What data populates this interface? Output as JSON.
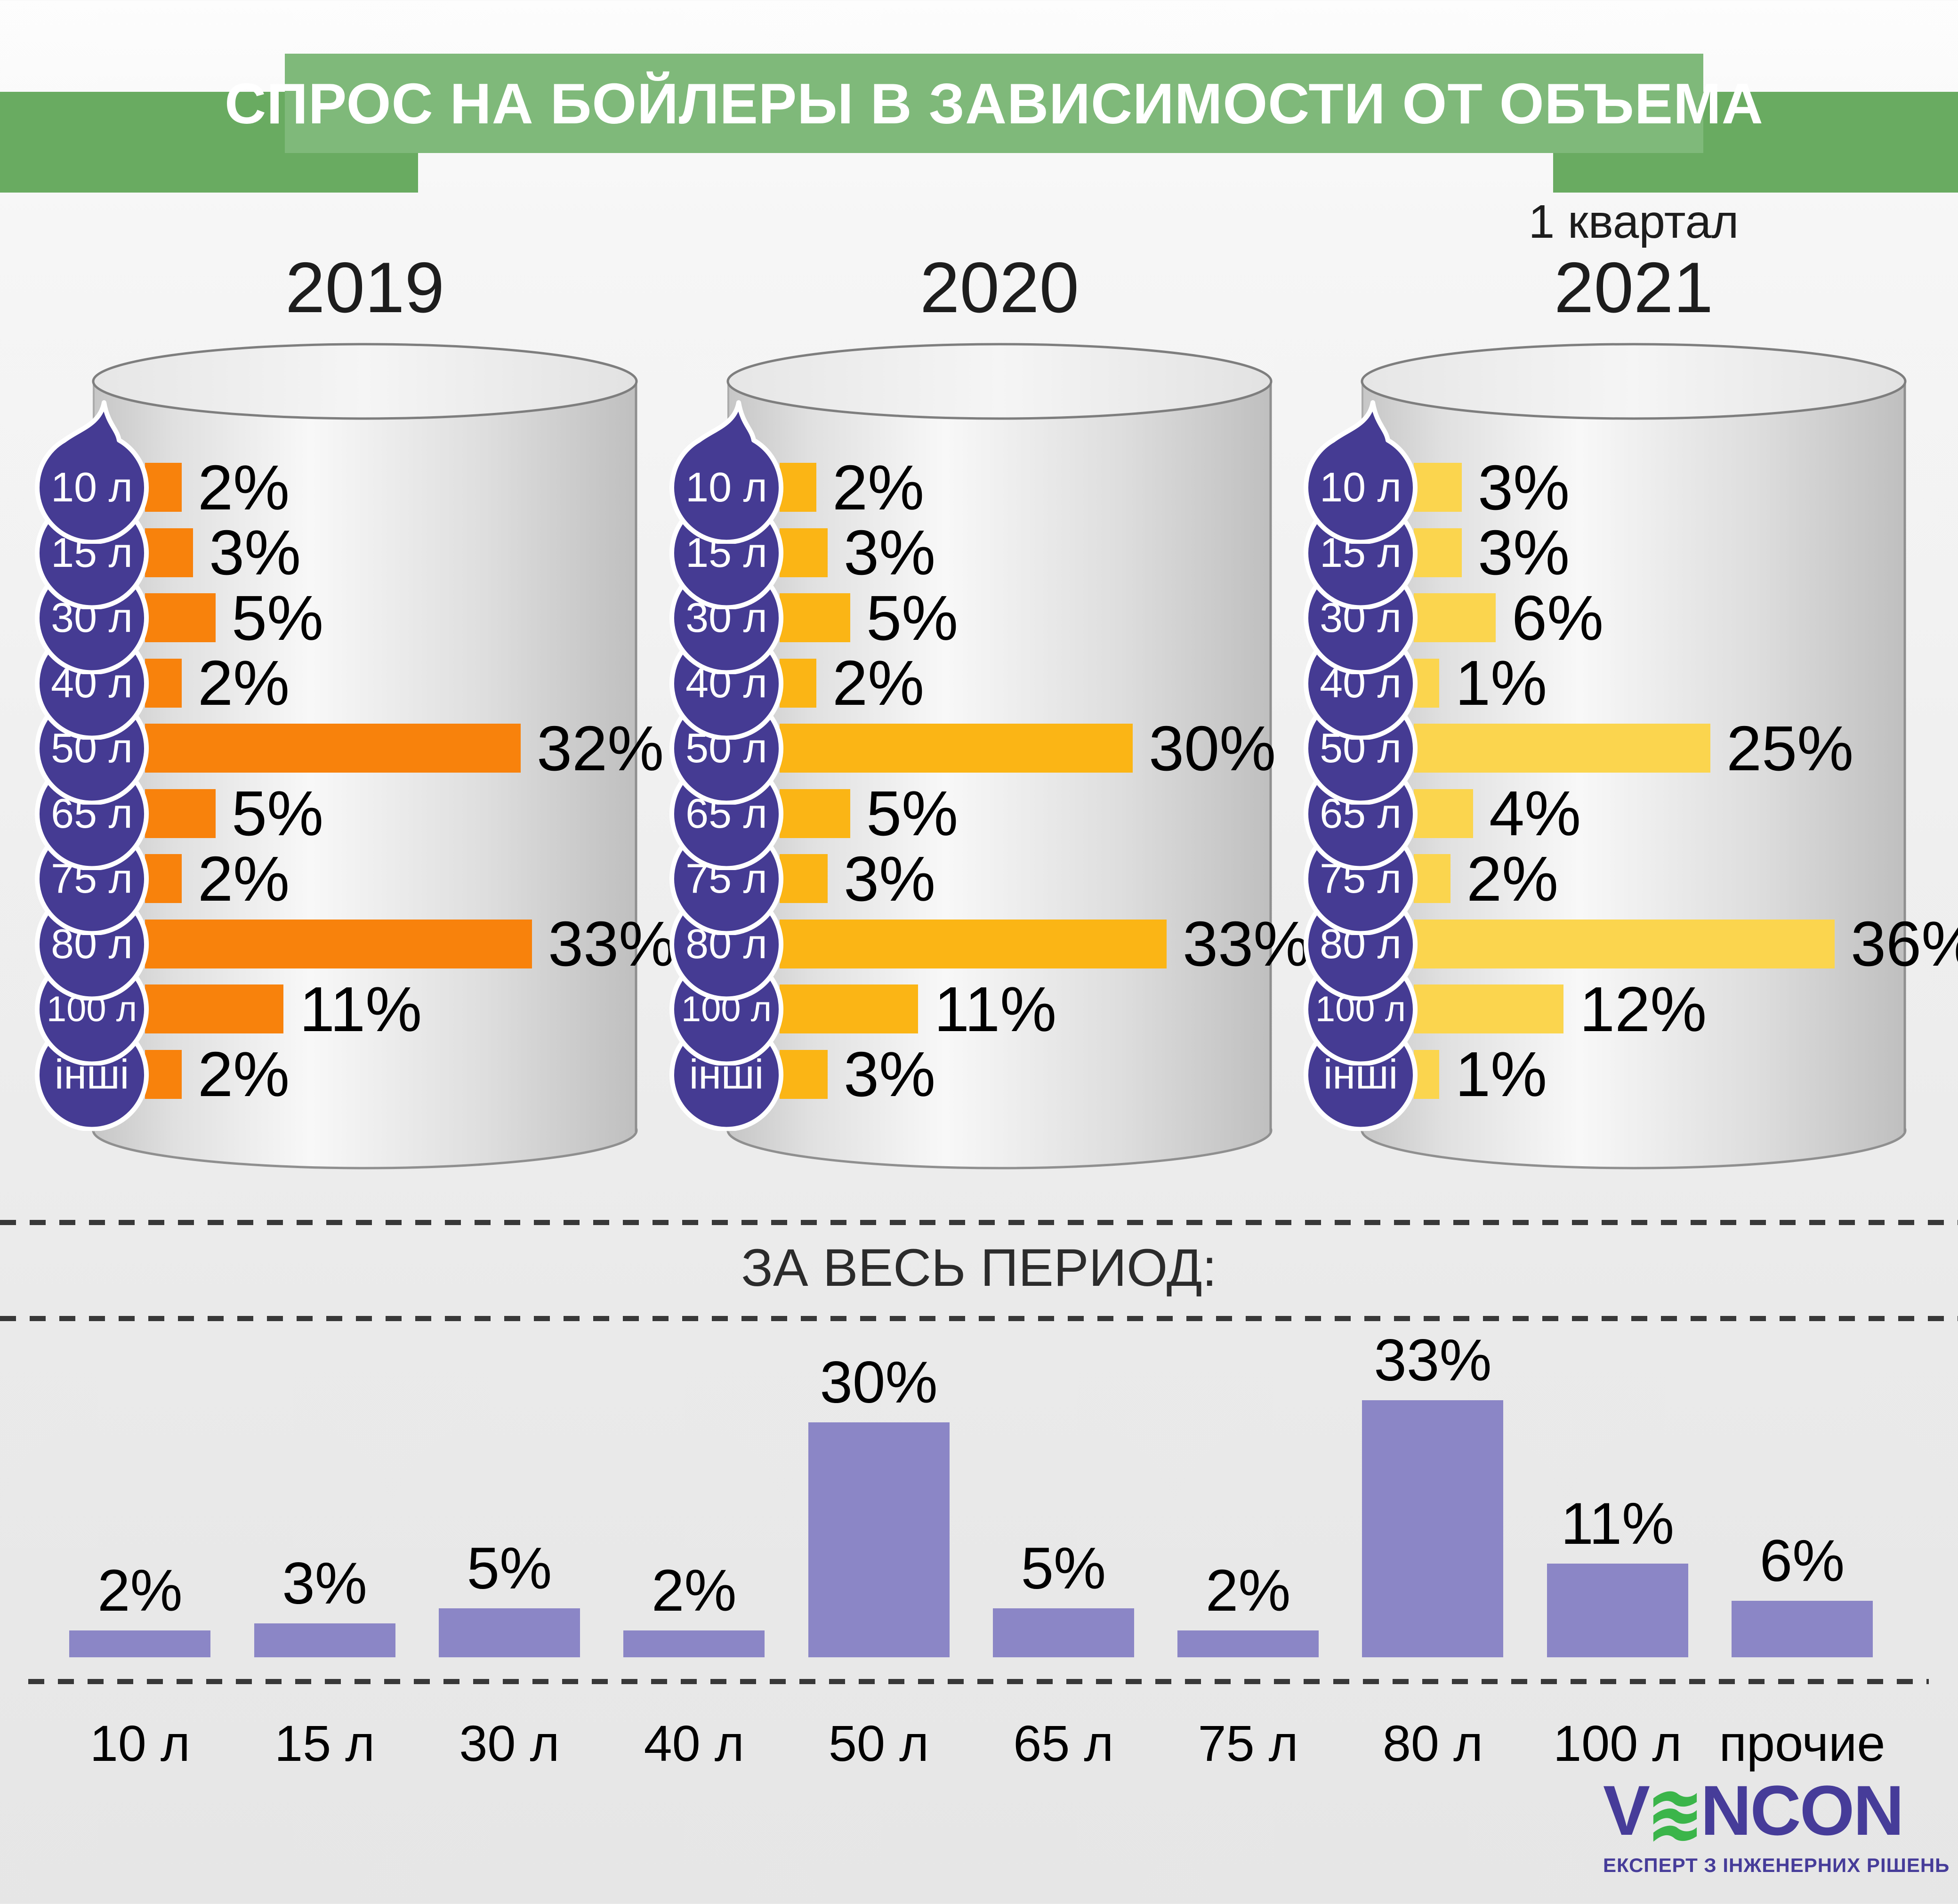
{
  "header": {
    "title": "СПРОС НА БОЙЛЕРЫ В ЗАВИСИМОСТИ ОТ ОБЪЕМА"
  },
  "chart_data": [
    {
      "type": "bar",
      "orientation": "horizontal",
      "title": "2019",
      "subtitle": "",
      "unit": "%",
      "bar_color": "#F8820C",
      "categories": [
        "10 л",
        "15 л",
        "30 л",
        "40 л",
        "50 л",
        "65 л",
        "75 л",
        "80 л",
        "100 л",
        "інші"
      ],
      "values": [
        2,
        3,
        5,
        2,
        32,
        5,
        2,
        33,
        11,
        2
      ]
    },
    {
      "type": "bar",
      "orientation": "horizontal",
      "title": "2020",
      "subtitle": "",
      "unit": "%",
      "bar_color": "#FBB515",
      "categories": [
        "10 л",
        "15 л",
        "30 л",
        "40 л",
        "50 л",
        "65 л",
        "75 л",
        "80 л",
        "100 л",
        "інші"
      ],
      "values": [
        2,
        3,
        5,
        2,
        30,
        5,
        3,
        33,
        11,
        3
      ]
    },
    {
      "type": "bar",
      "orientation": "horizontal",
      "title": "2021",
      "subtitle": "1 квартал",
      "unit": "%",
      "bar_color": "#FBD54E",
      "categories": [
        "10 л",
        "15 л",
        "30 л",
        "40 л",
        "50 л",
        "65 л",
        "75 л",
        "80 л",
        "100 л",
        "інші"
      ],
      "values": [
        3,
        3,
        6,
        1,
        25,
        4,
        2,
        36,
        12,
        1
      ]
    },
    {
      "type": "bar",
      "orientation": "vertical",
      "title": "ЗА ВЕСЬ ПЕРИОД:",
      "unit": "%",
      "bar_color": "#8B86C6",
      "categories": [
        "10 л",
        "15 л",
        "30 л",
        "40 л",
        "50 л",
        "65 л",
        "75 л",
        "80 л",
        "100 л",
        "прочие"
      ],
      "values": [
        2,
        3,
        5,
        2,
        30,
        5,
        2,
        33,
        11,
        6
      ]
    }
  ],
  "logo": {
    "brand": "VENCON",
    "brand_prefix": "V",
    "brand_suffix": "NCON",
    "tagline": "ЕКСПЕРТ З ІНЖЕНЕРНИХ РІШЕНЬ"
  },
  "colors": {
    "accent_green_dark": "#69AB61",
    "accent_green_light": "#7FB97A",
    "bar_2019": "#F8820C",
    "bar_2020": "#FBB515",
    "bar_2021": "#FBD54E",
    "bar_total": "#8B86C6",
    "drop": "#453B93",
    "logo_indigo": "#463C99",
    "logo_green": "#3BB54A"
  }
}
